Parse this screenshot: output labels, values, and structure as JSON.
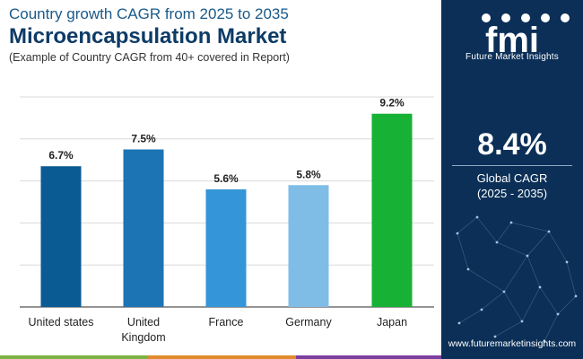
{
  "header": {
    "title_line1": "Country growth CAGR from 2025 to 2035",
    "title_line2": "Microencapsulation Market",
    "subtitle": "(Example of Country CAGR from 40+ covered in Report)"
  },
  "sidebar": {
    "logo_text": "fmi",
    "logo_caption": "Future Market Insights",
    "headline_value": "8.4%",
    "headline_label": "Global CAGR",
    "headline_period": "(2025 - 2035)",
    "website": "www.futuremarketinsights.com",
    "background_color": "#0b2f57"
  },
  "chart_data": {
    "type": "bar",
    "categories": [
      "United states",
      "United Kingdom",
      "France",
      "Germany",
      "Japan"
    ],
    "category_lines": [
      [
        "United states"
      ],
      [
        "United",
        "Kingdom"
      ],
      [
        "France"
      ],
      [
        "Germany"
      ],
      [
        "Japan"
      ]
    ],
    "values": [
      6.7,
      7.5,
      5.6,
      5.8,
      9.2
    ],
    "data_labels": [
      "6.7%",
      "7.5%",
      "5.6%",
      "5.8%",
      "9.2%"
    ],
    "bar_colors": [
      "#0a5a93",
      "#1c74b4",
      "#3496d8",
      "#7fbde6",
      "#16b135"
    ],
    "ylim": [
      0,
      10
    ],
    "grid": true,
    "title": "",
    "xlabel": "",
    "ylabel": ""
  },
  "footer_bar_colors": [
    "#7cb342",
    "#e08c2e",
    "#7b3fa0",
    "#0b2f57"
  ]
}
